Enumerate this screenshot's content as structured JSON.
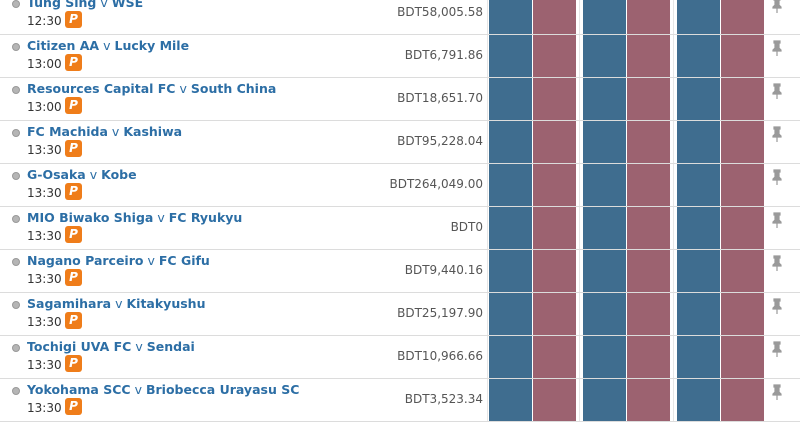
{
  "matches": [
    {
      "home": "Tung Sing",
      "sep": "v",
      "away": "WSE",
      "time": "12:30",
      "badge": "P",
      "matched": "BDT58,005.58"
    },
    {
      "home": "Citizen AA",
      "sep": "v",
      "away": "Lucky Mile",
      "time": "13:00",
      "badge": "P",
      "matched": "BDT6,791.86"
    },
    {
      "home": "Resources Capital FC",
      "sep": "v",
      "away": "South China",
      "time": "13:00",
      "badge": "P",
      "matched": "BDT18,651.70"
    },
    {
      "home": "FC Machida",
      "sep": "v",
      "away": "Kashiwa",
      "time": "13:30",
      "badge": "P",
      "matched": "BDT95,228.04"
    },
    {
      "home": "G-Osaka",
      "sep": "v",
      "away": "Kobe",
      "time": "13:30",
      "badge": "P",
      "matched": "BDT264,049.00"
    },
    {
      "home": "MIO Biwako Shiga",
      "sep": "v",
      "away": "FC Ryukyu",
      "time": "13:30",
      "badge": "P",
      "matched": "BDT0"
    },
    {
      "home": "Nagano Parceiro",
      "sep": "v",
      "away": "FC Gifu",
      "time": "13:30",
      "badge": "P",
      "matched": "BDT9,440.16"
    },
    {
      "home": "Sagamihara",
      "sep": "v",
      "away": "Kitakyushu",
      "time": "13:30",
      "badge": "P",
      "matched": "BDT25,197.90"
    },
    {
      "home": "Tochigi UVA FC",
      "sep": "v",
      "away": "Sendai",
      "time": "13:30",
      "badge": "P",
      "matched": "BDT10,966.66"
    },
    {
      "home": "Yokohama SCC",
      "sep": "v",
      "away": "Briobecca Urayasu SC",
      "time": "13:30",
      "badge": "P",
      "matched": "BDT3,523.34"
    }
  ]
}
